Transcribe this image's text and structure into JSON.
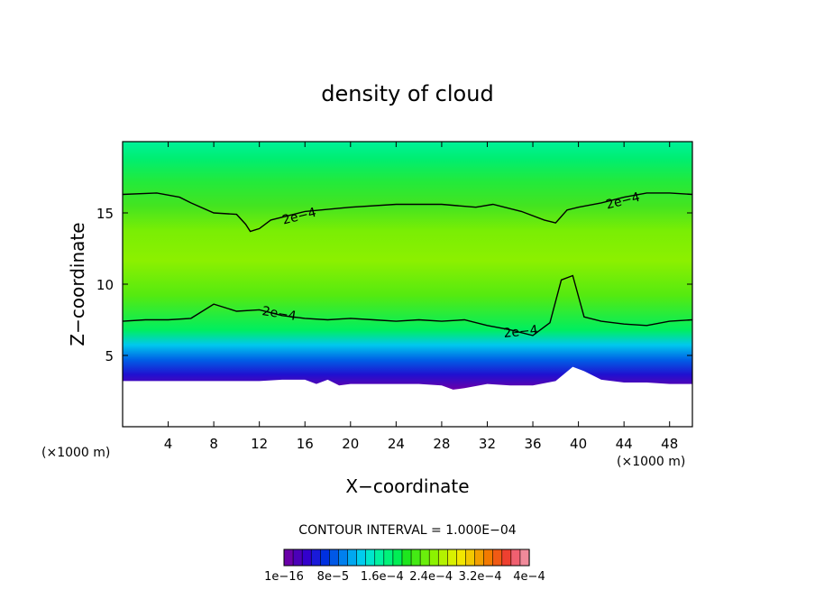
{
  "chart_data": {
    "type": "heatmap",
    "title": "density of cloud",
    "xlabel": "X−coordinate",
    "ylabel": "Z−coordinate",
    "x_unit_left": "(×1000 m)",
    "x_unit_right": "(×1000 m)",
    "xlim": [
      0,
      50
    ],
    "ylim": [
      0,
      20
    ],
    "x_ticks": [
      4,
      8,
      12,
      16,
      20,
      24,
      28,
      32,
      36,
      40,
      44,
      48
    ],
    "y_ticks": [
      5,
      10,
      15
    ],
    "contour_interval_text": "CONTOUR INTERVAL = 1.000E−04",
    "contour_label": "2e−4",
    "contour_value": 0.0002,
    "colorbar": {
      "labels": [
        "1e−16",
        "8e−5",
        "1.6e−4",
        "2.4e−4",
        "3.2e−4",
        "4e−4"
      ],
      "min": 1e-16,
      "max": 0.0004,
      "colors": [
        "#6a00a8",
        "#4b00b8",
        "#3300cc",
        "#1a1ad9",
        "#0030e0",
        "#0058e6",
        "#0080ee",
        "#00a8f0",
        "#00ccee",
        "#00e6cc",
        "#00f2a0",
        "#00f27a",
        "#00ee55",
        "#1ee61e",
        "#44ea14",
        "#6aee0c",
        "#8cf200",
        "#b4f200",
        "#d8f000",
        "#f2e600",
        "#f2c800",
        "#f2a000",
        "#f27a00",
        "#f05a14",
        "#ee4030",
        "#f06070",
        "#f08a9a"
      ]
    },
    "top_contour": {
      "x": [
        0,
        3,
        5,
        6,
        8,
        10,
        10.8,
        11.2,
        12,
        13,
        16,
        20,
        24,
        28,
        31,
        32.5,
        35,
        37,
        38,
        39,
        40,
        42,
        44,
        46,
        48,
        50
      ],
      "z": [
        16.3,
        16.4,
        16.1,
        15.7,
        15.0,
        14.9,
        14.2,
        13.7,
        13.9,
        14.5,
        15.1,
        15.4,
        15.6,
        15.6,
        15.4,
        15.6,
        15.1,
        14.5,
        14.3,
        15.2,
        15.4,
        15.7,
        16.1,
        16.4,
        16.4,
        16.3
      ]
    },
    "bottom_contour": {
      "x": [
        0,
        2,
        4,
        6,
        8,
        10,
        12,
        14,
        16,
        18,
        20,
        22,
        24,
        26,
        28,
        30,
        32,
        34,
        36,
        37.5,
        38.5,
        39.5,
        40.5,
        42,
        44,
        46,
        48,
        50
      ],
      "z": [
        7.4,
        7.5,
        7.5,
        7.6,
        8.6,
        8.1,
        8.2,
        7.8,
        7.6,
        7.5,
        7.6,
        7.5,
        7.4,
        7.5,
        7.4,
        7.5,
        7.1,
        6.8,
        6.4,
        7.3,
        10.3,
        10.6,
        7.7,
        7.4,
        7.2,
        7.1,
        7.4,
        7.5
      ]
    },
    "cloud_base": {
      "x": [
        0,
        2,
        4,
        6,
        8,
        10,
        12,
        14,
        16,
        17,
        18,
        19,
        20,
        22,
        24,
        26,
        28,
        29,
        30,
        32,
        34,
        36,
        38,
        39.5,
        40.5,
        42,
        44,
        46,
        48,
        50
      ],
      "z": [
        3.2,
        3.2,
        3.2,
        3.2,
        3.2,
        3.2,
        3.2,
        3.3,
        3.3,
        3.0,
        3.3,
        2.9,
        3.0,
        3.0,
        3.0,
        3.0,
        2.9,
        2.6,
        2.7,
        3.0,
        2.9,
        2.9,
        3.2,
        4.2,
        3.9,
        3.3,
        3.1,
        3.1,
        3.0,
        3.0
      ]
    },
    "grid": false
  }
}
